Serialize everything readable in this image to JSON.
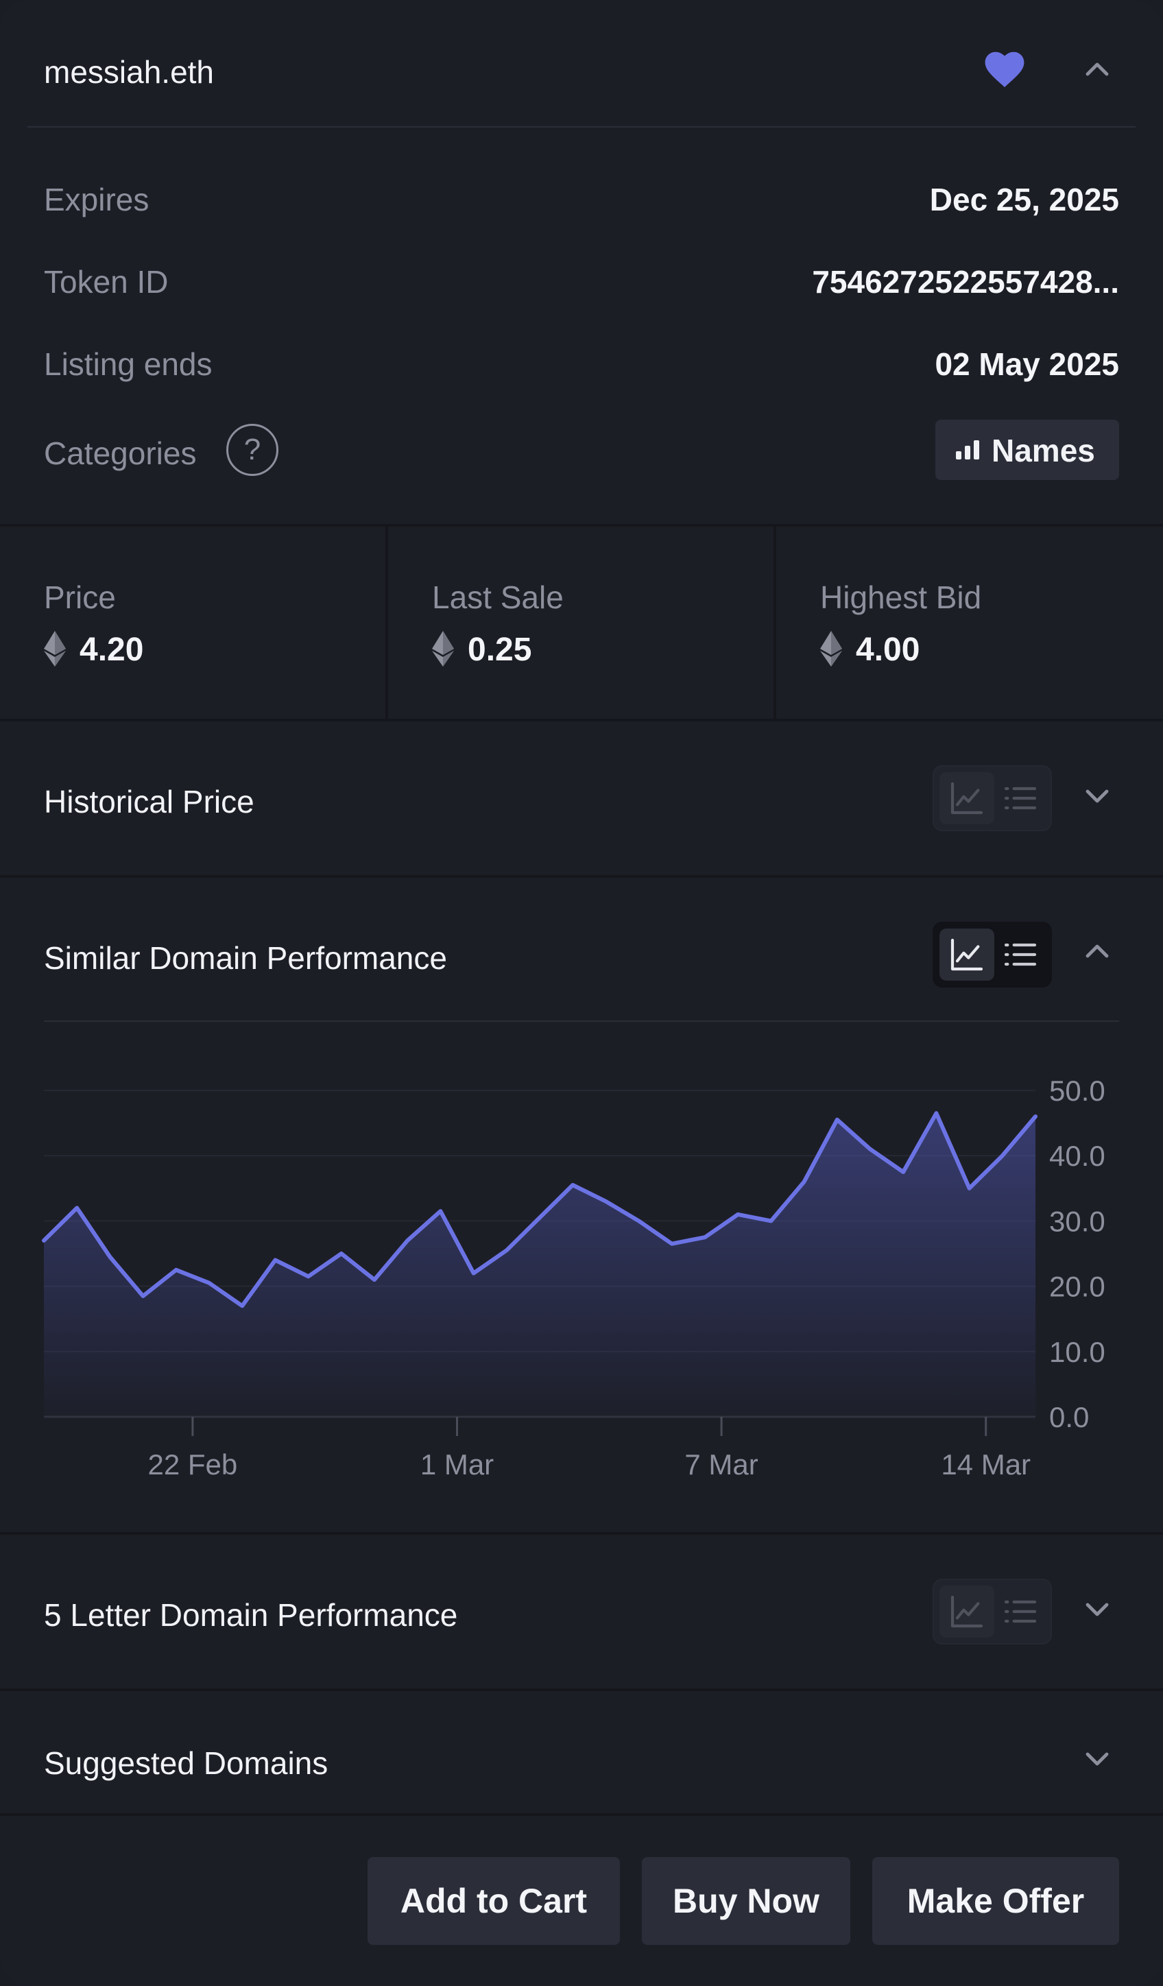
{
  "header": {
    "domain": "messiah.eth"
  },
  "details": [
    {
      "label": "Expires",
      "value": "Dec 25, 2025"
    },
    {
      "label": "Token ID",
      "value": "7546272522557428..."
    },
    {
      "label": "Listing ends",
      "value": "02 May 2025"
    },
    {
      "label": "Categories",
      "badge": "Names"
    }
  ],
  "help_glyph": "?",
  "stats": [
    {
      "label": "Price",
      "value": "4.20"
    },
    {
      "label": "Last Sale",
      "value": "0.25"
    },
    {
      "label": "Highest Bid",
      "value": "4.00"
    }
  ],
  "sections": {
    "historical": "Historical Price",
    "similar": "Similar Domain Performance",
    "five_letter": "5 Letter Domain Performance",
    "suggested": "Suggested Domains"
  },
  "buttons": {
    "add_to_cart": "Add to Cart",
    "buy_now": "Buy Now",
    "make_offer": "Make Offer"
  },
  "colors": {
    "accent": "#6b73e4",
    "background": "#1c1e26",
    "button": "#2b2e39"
  },
  "icons": [
    "heart-icon",
    "chevron-up-icon",
    "chevron-down-icon",
    "help-icon",
    "bar-chart-icon",
    "ethereum-icon",
    "line-chart-icon",
    "list-icon"
  ],
  "chart_data": {
    "type": "area",
    "x_tick_labels": [
      "22 Feb",
      "1 Mar",
      "7 Mar",
      "14 Mar"
    ],
    "x_tick_index": [
      4.5,
      12.5,
      20.5,
      28.5
    ],
    "y_ticks": [
      "50.0",
      "40.0",
      "30.0",
      "20.0",
      "10.0",
      "0.0"
    ],
    "ylim": [
      0,
      50
    ],
    "values": [
      27,
      32,
      24.5,
      18.5,
      22.5,
      20.5,
      17,
      24,
      21.5,
      25,
      21,
      27,
      31.5,
      22,
      25.5,
      30.5,
      35.5,
      33,
      30,
      26.5,
      27.5,
      31,
      30,
      36,
      45.5,
      41,
      37.5,
      46.5,
      35,
      40,
      46
    ],
    "series_color": "#6b73e4",
    "grid": true
  }
}
